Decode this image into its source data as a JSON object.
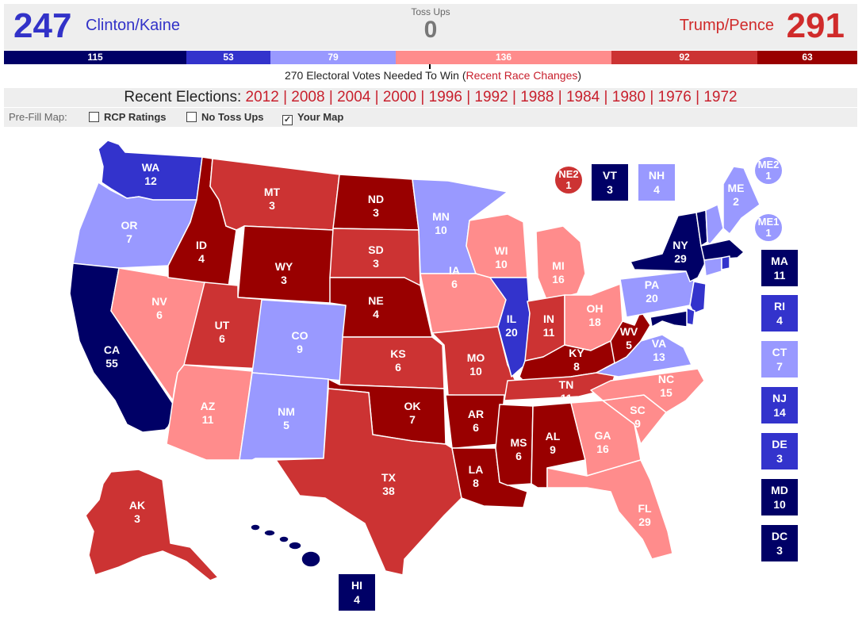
{
  "header": {
    "dem_count": "247",
    "dem_name": "Clinton/Kaine",
    "tossup_label": "Toss Ups",
    "tossup_value": "0",
    "rep_name": "Trump/Pence",
    "rep_count": "291"
  },
  "bar": [
    {
      "label": "115",
      "color": "#000066"
    },
    {
      "label": "53",
      "color": "#3333cc"
    },
    {
      "label": "79",
      "color": "#9999ff"
    },
    {
      "label": "136",
      "color": "#ff8c8c"
    },
    {
      "label": "92",
      "color": "#cc3333"
    },
    {
      "label": "63",
      "color": "#990000"
    }
  ],
  "needed": {
    "text": "270 Electoral Votes Needed To Win (",
    "link": "Recent Race Changes",
    "close": ")"
  },
  "recent": {
    "label": "Recent Elections:",
    "years": [
      "2012",
      "2008",
      "2004",
      "2000",
      "1996",
      "1992",
      "1988",
      "1984",
      "1980",
      "1976",
      "1972"
    ]
  },
  "prefill": {
    "label": "Pre-Fill Map:",
    "options": [
      {
        "label": "RCP Ratings",
        "checked": false
      },
      {
        "label": "No Toss Ups",
        "checked": false
      },
      {
        "label": "Your Map",
        "checked": true
      }
    ]
  },
  "colors": {
    "safe_dem": "#000066",
    "likely_dem": "#3333cc",
    "lean_dem": "#9999ff",
    "lean_rep": "#ff8c8c",
    "likely_rep": "#cc3333",
    "safe_rep": "#990000"
  },
  "states": [
    {
      "abbr": "WA",
      "ev": "12"
    },
    {
      "abbr": "OR",
      "ev": "7"
    },
    {
      "abbr": "CA",
      "ev": "55"
    },
    {
      "abbr": "NV",
      "ev": "6"
    },
    {
      "abbr": "ID",
      "ev": "4"
    },
    {
      "abbr": "MT",
      "ev": "3"
    },
    {
      "abbr": "WY",
      "ev": "3"
    },
    {
      "abbr": "UT",
      "ev": "6"
    },
    {
      "abbr": "AZ",
      "ev": "11"
    },
    {
      "abbr": "CO",
      "ev": "9"
    },
    {
      "abbr": "NM",
      "ev": "5"
    },
    {
      "abbr": "ND",
      "ev": "3"
    },
    {
      "abbr": "SD",
      "ev": "3"
    },
    {
      "abbr": "NE",
      "ev": "4"
    },
    {
      "abbr": "KS",
      "ev": "6"
    },
    {
      "abbr": "OK",
      "ev": "7"
    },
    {
      "abbr": "TX",
      "ev": "38"
    },
    {
      "abbr": "MN",
      "ev": "10"
    },
    {
      "abbr": "IA",
      "ev": "6"
    },
    {
      "abbr": "MO",
      "ev": "10"
    },
    {
      "abbr": "AR",
      "ev": "6"
    },
    {
      "abbr": "LA",
      "ev": "8"
    },
    {
      "abbr": "WI",
      "ev": "10"
    },
    {
      "abbr": "IL",
      "ev": "20"
    },
    {
      "abbr": "MS",
      "ev": "6"
    },
    {
      "abbr": "MI",
      "ev": "16"
    },
    {
      "abbr": "IN",
      "ev": "11"
    },
    {
      "abbr": "KY",
      "ev": "8"
    },
    {
      "abbr": "TN",
      "ev": "11"
    },
    {
      "abbr": "AL",
      "ev": "9"
    },
    {
      "abbr": "OH",
      "ev": "18"
    },
    {
      "abbr": "GA",
      "ev": "16"
    },
    {
      "abbr": "FL",
      "ev": "29"
    },
    {
      "abbr": "WV",
      "ev": "5"
    },
    {
      "abbr": "VA",
      "ev": "13"
    },
    {
      "abbr": "NC",
      "ev": "15"
    },
    {
      "abbr": "SC",
      "ev": "9"
    },
    {
      "abbr": "PA",
      "ev": "20"
    },
    {
      "abbr": "NY",
      "ev": "29"
    },
    {
      "abbr": "ME",
      "ev": "2"
    },
    {
      "abbr": "AK",
      "ev": "3"
    }
  ],
  "small_states": [
    {
      "abbr": "VT",
      "ev": "3"
    },
    {
      "abbr": "NH",
      "ev": "4"
    },
    {
      "abbr": "MA",
      "ev": "11"
    },
    {
      "abbr": "RI",
      "ev": "4"
    },
    {
      "abbr": "CT",
      "ev": "7"
    },
    {
      "abbr": "NJ",
      "ev": "14"
    },
    {
      "abbr": "DE",
      "ev": "3"
    },
    {
      "abbr": "MD",
      "ev": "10"
    },
    {
      "abbr": "DC",
      "ev": "3"
    },
    {
      "abbr": "HI",
      "ev": "4"
    }
  ],
  "districts": [
    {
      "abbr": "NE2",
      "ev": "1"
    },
    {
      "abbr": "ME2",
      "ev": "1"
    },
    {
      "abbr": "ME1",
      "ev": "1"
    }
  ]
}
